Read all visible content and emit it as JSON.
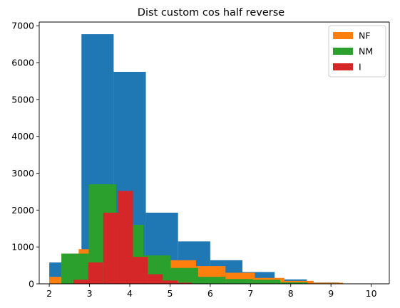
{
  "chart_data": {
    "type": "bar",
    "title": "Dist custom cos half reverse",
    "xlabel": "",
    "ylabel": "",
    "xlim": [
      1.75,
      10.45
    ],
    "ylim": [
      0,
      7100
    ],
    "xticks": [
      "2",
      "3",
      "4",
      "5",
      "6",
      "7",
      "8",
      "9",
      "10"
    ],
    "yticks": [
      "0",
      "1000",
      "2000",
      "3000",
      "4000",
      "5000",
      "6000",
      "7000"
    ],
    "legend_position": "top-right",
    "series": [
      {
        "name": "",
        "color": "#1f77b4",
        "in_legend": false,
        "bins": [
          {
            "x0": 2.0,
            "x1": 2.8,
            "value": 580
          },
          {
            "x0": 2.8,
            "x1": 3.6,
            "value": 6770
          },
          {
            "x0": 3.6,
            "x1": 4.4,
            "value": 5750
          },
          {
            "x0": 4.4,
            "x1": 5.2,
            "value": 1930
          },
          {
            "x0": 5.2,
            "x1": 6.0,
            "value": 1150
          },
          {
            "x0": 6.0,
            "x1": 6.8,
            "value": 640
          },
          {
            "x0": 6.8,
            "x1": 7.6,
            "value": 320
          },
          {
            "x0": 7.6,
            "x1": 8.4,
            "value": 120
          },
          {
            "x0": 8.4,
            "x1": 9.2,
            "value": 35
          },
          {
            "x0": 9.2,
            "x1": 10.2,
            "value": 10
          }
        ]
      },
      {
        "name": "NF",
        "color": "#ff7f0e",
        "in_legend": true,
        "bins": [
          {
            "x0": 2.0,
            "x1": 2.73,
            "value": 190
          },
          {
            "x0": 2.73,
            "x1": 3.46,
            "value": 940
          },
          {
            "x0": 3.46,
            "x1": 4.19,
            "value": 530
          },
          {
            "x0": 4.19,
            "x1": 4.92,
            "value": 260
          },
          {
            "x0": 4.92,
            "x1": 5.65,
            "value": 640
          },
          {
            "x0": 5.65,
            "x1": 6.38,
            "value": 480
          },
          {
            "x0": 6.38,
            "x1": 7.11,
            "value": 300
          },
          {
            "x0": 7.11,
            "x1": 7.84,
            "value": 160
          },
          {
            "x0": 7.84,
            "x1": 8.57,
            "value": 80
          },
          {
            "x0": 8.57,
            "x1": 9.3,
            "value": 30
          }
        ]
      },
      {
        "name": "NM",
        "color": "#2ca02c",
        "in_legend": true,
        "bins": [
          {
            "x0": 2.3,
            "x1": 2.98,
            "value": 820
          },
          {
            "x0": 2.98,
            "x1": 3.66,
            "value": 2700
          },
          {
            "x0": 3.66,
            "x1": 4.34,
            "value": 1600
          },
          {
            "x0": 4.34,
            "x1": 5.02,
            "value": 770
          },
          {
            "x0": 5.02,
            "x1": 5.7,
            "value": 430
          },
          {
            "x0": 5.7,
            "x1": 6.38,
            "value": 190
          },
          {
            "x0": 6.38,
            "x1": 7.06,
            "value": 130
          },
          {
            "x0": 7.06,
            "x1": 7.74,
            "value": 110
          },
          {
            "x0": 7.74,
            "x1": 8.42,
            "value": 40
          },
          {
            "x0": 8.42,
            "x1": 9.1,
            "value": 10
          }
        ]
      },
      {
        "name": "I",
        "color": "#d62728",
        "in_legend": true,
        "bins": [
          {
            "x0": 2.6,
            "x1": 2.97,
            "value": 110
          },
          {
            "x0": 2.97,
            "x1": 3.34,
            "value": 580
          },
          {
            "x0": 3.34,
            "x1": 3.71,
            "value": 1930
          },
          {
            "x0": 3.71,
            "x1": 4.08,
            "value": 2520
          },
          {
            "x0": 4.08,
            "x1": 4.45,
            "value": 730
          },
          {
            "x0": 4.45,
            "x1": 4.82,
            "value": 260
          },
          {
            "x0": 4.82,
            "x1": 5.19,
            "value": 90
          },
          {
            "x0": 5.19,
            "x1": 5.56,
            "value": 30
          },
          {
            "x0": 5.56,
            "x1": 5.93,
            "value": 10
          },
          {
            "x0": 5.93,
            "x1": 6.3,
            "value": 5
          }
        ]
      }
    ]
  }
}
